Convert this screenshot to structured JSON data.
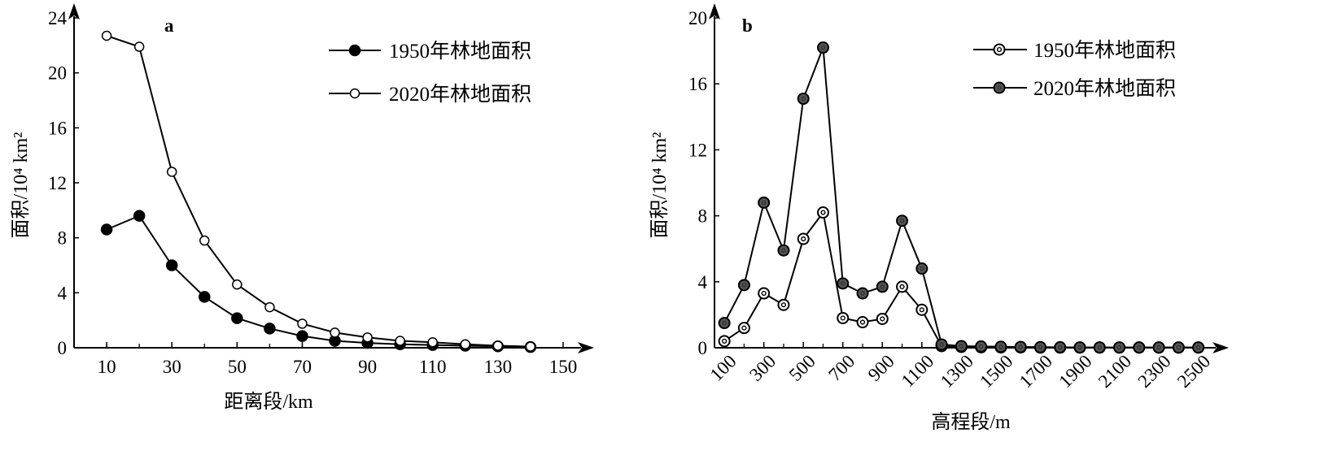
{
  "colors": {
    "axis": "#000000",
    "line": "#000000",
    "filled_marker_a": "#000000",
    "filled_marker_b": "#555555",
    "hollow_marker": "#ffffff"
  },
  "chart_data": [
    {
      "panel": "a",
      "type": "line",
      "xlabel": "距离段/km",
      "ylabel": "面积/10⁴ km²",
      "x_tick_labels": [
        "10",
        "30",
        "50",
        "70",
        "90",
        "110",
        "130",
        "150"
      ],
      "x_ticks": [
        10,
        30,
        50,
        70,
        90,
        110,
        130,
        150
      ],
      "y_tick_labels": [
        "0",
        "4",
        "8",
        "12",
        "16",
        "20",
        "24"
      ],
      "y_ticks": [
        0,
        4,
        8,
        12,
        16,
        20,
        24
      ],
      "xlim": [
        0,
        155
      ],
      "ylim": [
        0,
        24
      ],
      "x": [
        10,
        20,
        30,
        40,
        50,
        60,
        70,
        80,
        90,
        100,
        110,
        120,
        130,
        140
      ],
      "series": [
        {
          "name": "1950年林地面积",
          "marker": "filled",
          "values": [
            8.6,
            9.6,
            6.0,
            3.7,
            2.15,
            1.4,
            0.85,
            0.5,
            0.35,
            0.25,
            0.2,
            0.15,
            0.1,
            0.05
          ]
        },
        {
          "name": "2020年林地面积",
          "marker": "hollow",
          "values": [
            22.7,
            21.9,
            12.8,
            7.8,
            4.6,
            2.95,
            1.75,
            1.1,
            0.75,
            0.5,
            0.4,
            0.25,
            0.15,
            0.08
          ]
        }
      ],
      "legend_position": "top-right",
      "grid": false
    },
    {
      "panel": "b",
      "type": "line",
      "xlabel": "高程段/m",
      "ylabel": "面积/10⁴ km²",
      "x_tick_labels": [
        "100",
        "300",
        "500",
        "700",
        "900",
        "1100",
        "1300",
        "1500",
        "1700",
        "1900",
        "2100",
        "2300",
        "2500"
      ],
      "x_ticks": [
        100,
        300,
        500,
        700,
        900,
        1100,
        1300,
        1500,
        1700,
        1900,
        2100,
        2300,
        2500
      ],
      "y_tick_labels": [
        "0",
        "4",
        "8",
        "12",
        "16",
        "20"
      ],
      "y_ticks": [
        0,
        4,
        8,
        12,
        16,
        20
      ],
      "xlim": [
        50,
        2580
      ],
      "ylim": [
        0,
        20
      ],
      "x": [
        100,
        200,
        300,
        400,
        500,
        600,
        700,
        800,
        900,
        1000,
        1100,
        1200,
        1300,
        1400,
        1500,
        1600,
        1700,
        1800,
        1900,
        2000,
        2100,
        2200,
        2300,
        2400,
        2500
      ],
      "series": [
        {
          "name": "1950年林地面积",
          "marker": "ring",
          "values": [
            0.4,
            1.2,
            3.3,
            2.6,
            6.6,
            8.2,
            1.8,
            1.55,
            1.75,
            3.7,
            2.3,
            0.1,
            0.05,
            0.03,
            0.02,
            0.02,
            0.01,
            0.01,
            0.01,
            0.01,
            0.01,
            0.01,
            0.01,
            0.01,
            0.01
          ]
        },
        {
          "name": "2020年林地面积",
          "marker": "filled-ring",
          "values": [
            1.5,
            3.8,
            8.8,
            5.9,
            15.1,
            18.2,
            3.9,
            3.3,
            3.7,
            7.7,
            4.8,
            0.2,
            0.1,
            0.08,
            0.06,
            0.05,
            0.04,
            0.03,
            0.02,
            0.02,
            0.02,
            0.02,
            0.02,
            0.02,
            0.02
          ]
        }
      ],
      "legend_position": "top-right",
      "grid": false
    }
  ]
}
